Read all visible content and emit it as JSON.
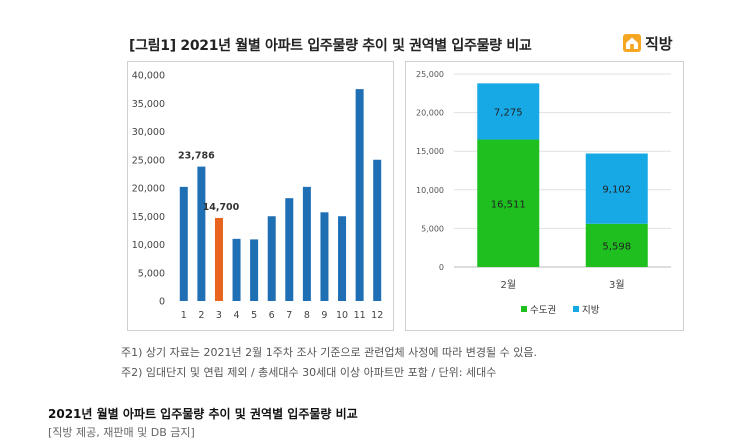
{
  "figure_title": "[그림1] 2021년 월별 아파트 입주물량 추이 및 권역별 입주물량 비교",
  "logo": {
    "text": "직방",
    "icon": "home-house-icon",
    "color": "#f5a623"
  },
  "notes": [
    "주1) 상기 자료는 2021년 2월 1주차 조사 기준으로 관련업체 사정에 따라 변경될 수 있음.",
    "주2) 임대단지 및 연립 제외 / 총세대수 30세대 이상 아파트만 포함 / 단위: 세대수"
  ],
  "caption": "2021년 월별 아파트 입주물량 추이 및 권역별 입주물량 비교",
  "credit": "[직방 제공, 재판매 및 DB 금지]",
  "colors": {
    "bar_blue": "#1f6fb5",
    "bar_highlight": "#e8631e",
    "green": "#1fbf1f",
    "cyan": "#17a9e6"
  },
  "chart_data": [
    {
      "type": "bar",
      "categories": [
        "1",
        "2",
        "3",
        "4",
        "5",
        "6",
        "7",
        "8",
        "9",
        "10",
        "11",
        "12"
      ],
      "values": [
        20200,
        23786,
        14700,
        11000,
        10900,
        15000,
        18200,
        20200,
        15700,
        15000,
        37500,
        25000
      ],
      "highlight_index": 2,
      "data_labels": {
        "1": "23,786",
        "2": "14,700"
      },
      "ylim": [
        0,
        40000
      ],
      "yticks": [
        0,
        5000,
        10000,
        15000,
        20000,
        25000,
        30000,
        35000,
        40000
      ],
      "ytick_labels": [
        "0",
        "5,000",
        "10,000",
        "15,000",
        "20,000",
        "25,000",
        "30,000",
        "35,000",
        "40,000"
      ],
      "grid": false
    },
    {
      "type": "bar",
      "stacked": true,
      "categories": [
        "2월",
        "3월"
      ],
      "series": [
        {
          "name": "수도권",
          "values": [
            16511,
            5598
          ],
          "labels": [
            "16,511",
            "5,598"
          ]
        },
        {
          "name": "지방",
          "values": [
            7275,
            9102
          ],
          "labels": [
            "7,275",
            "9,102"
          ]
        }
      ],
      "ylim": [
        0,
        25000
      ],
      "yticks": [
        0,
        5000,
        10000,
        15000,
        20000,
        25000
      ],
      "ytick_labels": [
        "0",
        "5,000",
        "10,000",
        "15,000",
        "20,000",
        "25,000"
      ],
      "grid": true,
      "legend_position": "bottom"
    }
  ]
}
